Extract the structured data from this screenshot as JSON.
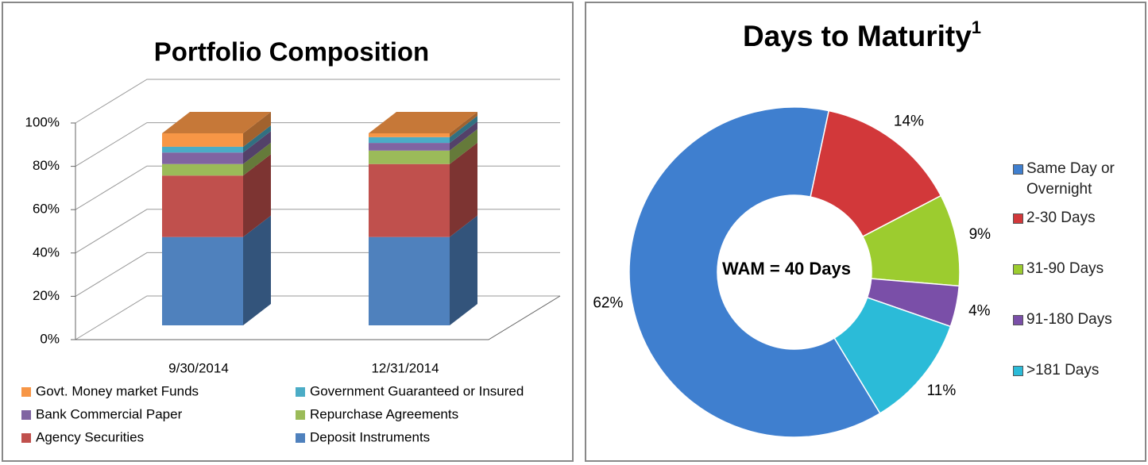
{
  "chart_data": [
    {
      "type": "bar",
      "stacked": true,
      "title": "Portfolio Composition",
      "categories": [
        "9/30/2014",
        "12/31/2014"
      ],
      "series": [
        {
          "name": "Deposit Instruments",
          "color": "#4f81bd",
          "values": [
            46,
            46
          ]
        },
        {
          "name": "Agency Securities",
          "color": "#c0504d",
          "values": [
            32,
            38
          ]
        },
        {
          "name": "Repurchase Agreements",
          "color": "#9bbb59",
          "values": [
            6,
            7
          ]
        },
        {
          "name": "Bank Commercial Paper",
          "color": "#8064a2",
          "values": [
            6,
            4
          ]
        },
        {
          "name": "Government Guaranteed or Insured",
          "color": "#4bacc6",
          "values": [
            3,
            3
          ]
        },
        {
          "name": "Govt. Money market Funds",
          "color": "#f79646",
          "values": [
            7,
            2
          ]
        }
      ],
      "ylim": [
        0,
        100
      ],
      "yticks": [
        {
          "value": 0,
          "label": "0%"
        },
        {
          "value": 20,
          "label": "20%"
        },
        {
          "value": 40,
          "label": "40%"
        },
        {
          "value": 60,
          "label": "60%"
        },
        {
          "value": 80,
          "label": "80%"
        },
        {
          "value": 100,
          "label": "100%"
        }
      ],
      "grid": true
    },
    {
      "type": "doughnut",
      "title": "Days to Maturity",
      "title_superscript": "1",
      "center_text": "WAM = 40 Days",
      "categories": [
        "Same Day or Overnight",
        "2-30 Days",
        "31-90 Days",
        "91-180 Days",
        ">181 Days"
      ],
      "colors": [
        "#3f7fcf",
        "#d2383a",
        "#9ccc2f",
        "#7a4fa8",
        "#2bbbd8"
      ],
      "values": [
        62,
        14,
        9,
        4,
        11
      ],
      "value_labels": [
        "62%",
        "14%",
        "9%",
        "4%",
        "11%"
      ]
    }
  ]
}
